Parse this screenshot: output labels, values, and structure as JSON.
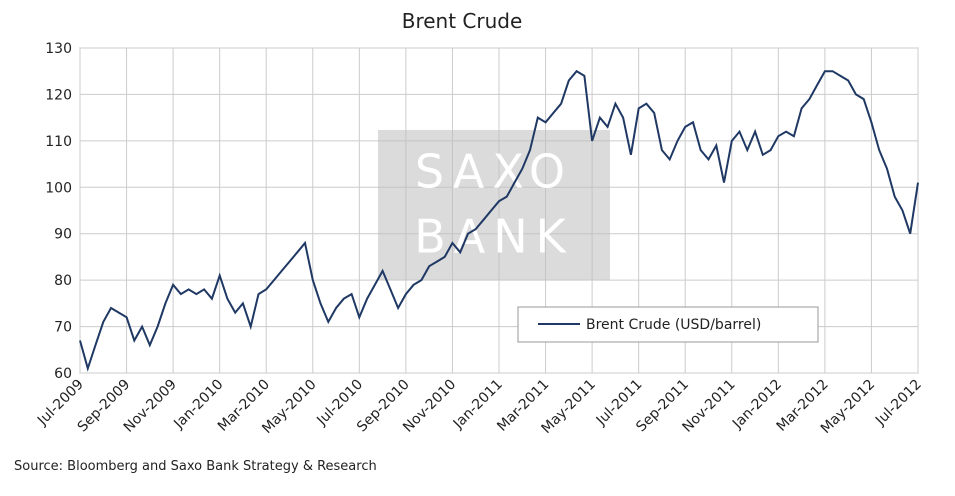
{
  "chart_data": {
    "type": "line",
    "title": "Brent Crude",
    "source": "Source: Bloomberg and Saxo Bank Strategy & Research",
    "watermark": [
      "SAXO",
      "BANK"
    ],
    "categories": [
      "Jul-2009",
      null,
      null,
      null,
      null,
      null,
      "Sep-2009",
      null,
      null,
      null,
      null,
      null,
      "Nov-2009",
      null,
      null,
      null,
      null,
      null,
      "Jan-2010",
      null,
      null,
      null,
      null,
      null,
      "Mar-2010",
      null,
      null,
      null,
      null,
      null,
      "May-2010",
      null,
      null,
      null,
      null,
      null,
      "Jul-2010",
      null,
      null,
      null,
      null,
      null,
      "Sep-2010",
      null,
      null,
      null,
      null,
      null,
      "Nov-2010",
      null,
      null,
      null,
      null,
      null,
      "Jan-2011",
      null,
      null,
      null,
      null,
      null,
      "Mar-2011",
      null,
      null,
      null,
      null,
      null,
      "May-2011",
      null,
      null,
      null,
      null,
      null,
      "Jul-2011",
      null,
      null,
      null,
      null,
      null,
      "Sep-2011",
      null,
      null,
      null,
      null,
      null,
      "Nov-2011",
      null,
      null,
      null,
      null,
      null,
      "Jan-2012",
      null,
      null,
      null,
      null,
      null,
      "Mar-2012",
      null,
      null,
      null,
      null,
      null,
      "May-2012",
      null,
      null,
      null,
      null,
      null,
      "Jul-2012"
    ],
    "series": [
      {
        "name": "Brent Crude (USD/barrel)",
        "color": "#1f3864",
        "values": [
          67,
          61,
          66,
          71,
          74,
          73,
          72,
          67,
          70,
          66,
          70,
          75,
          79,
          77,
          78,
          77,
          78,
          76,
          81,
          76,
          73,
          75,
          70,
          77,
          78,
          80,
          82,
          84,
          86,
          88,
          80,
          75,
          71,
          74,
          76,
          77,
          72,
          76,
          79,
          82,
          78,
          74,
          77,
          79,
          80,
          83,
          84,
          85,
          88,
          86,
          90,
          91,
          93,
          95,
          97,
          98,
          101,
          104,
          108,
          115,
          114,
          116,
          118,
          123,
          125,
          124,
          110,
          115,
          113,
          118,
          115,
          107,
          117,
          118,
          116,
          108,
          106,
          110,
          113,
          114,
          108,
          106,
          109,
          101,
          110,
          112,
          108,
          112,
          107,
          108,
          111,
          112,
          111,
          117,
          119,
          122,
          125,
          125,
          124,
          123,
          120,
          119,
          114,
          108,
          104,
          98,
          95,
          90,
          101
        ]
      }
    ],
    "ylim": [
      60,
      130
    ],
    "yticks": [
      60,
      70,
      80,
      90,
      100,
      110,
      120,
      130
    ],
    "grid": true
  }
}
